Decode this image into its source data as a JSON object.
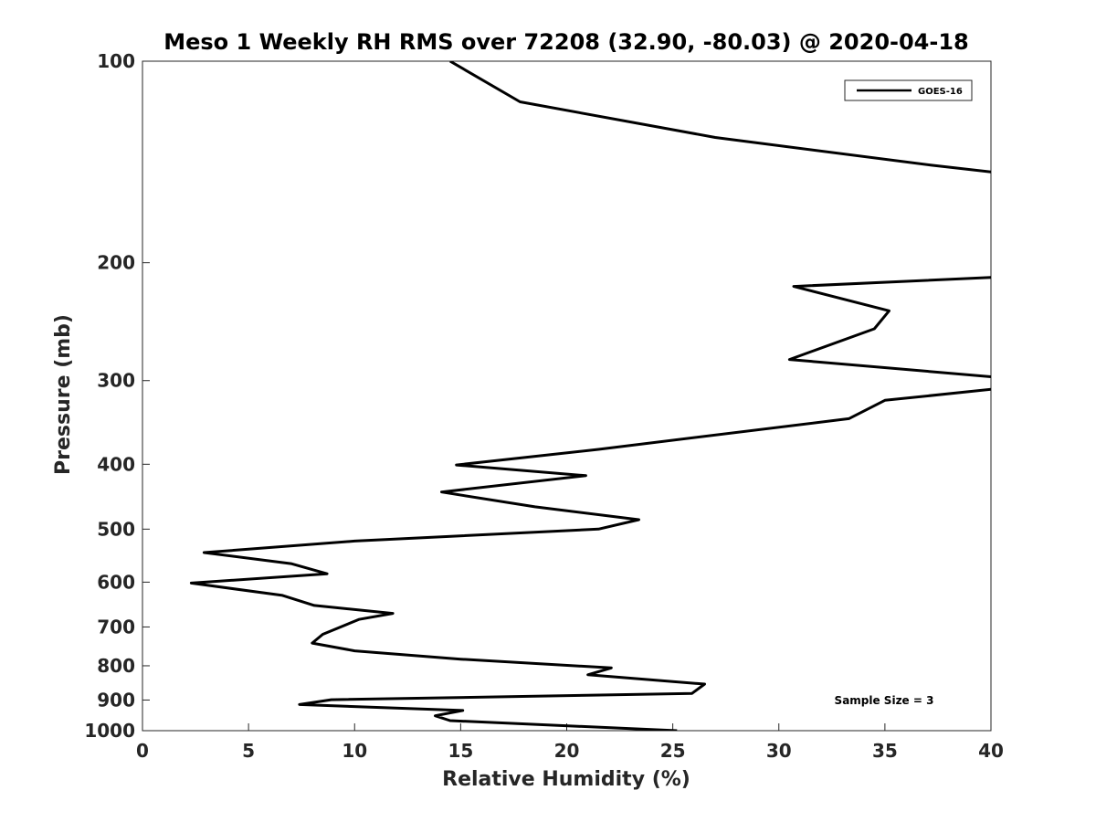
{
  "chart_data": {
    "type": "line",
    "title": "Meso 1 Weekly RH RMS over 72208 (32.90, -80.03) @ 2020-04-18",
    "xlabel": "Relative Humidity (%)",
    "ylabel": "Pressure (mb)",
    "xlim": [
      0,
      40
    ],
    "ylim": [
      100,
      1000
    ],
    "yscale": "log",
    "y_reversed": true,
    "xticks": [
      0,
      5,
      10,
      15,
      20,
      25,
      30,
      35,
      40
    ],
    "xtick_labels": [
      "0",
      "5",
      "10",
      "15",
      "20",
      "25",
      "30",
      "35",
      "40"
    ],
    "yticks": [
      100,
      200,
      300,
      400,
      500,
      600,
      700,
      800,
      900,
      1000
    ],
    "ytick_labels": [
      "100",
      "200",
      "300",
      "400",
      "500",
      "600",
      "700",
      "800",
      "900",
      "1000"
    ],
    "grid": false,
    "legend_position": "top-right",
    "annotation": "Sample Size = 3",
    "series": [
      {
        "name": "GOES-16",
        "color": "#000000",
        "points": [
          [
            14.5,
            100
          ],
          [
            17.8,
            115
          ],
          [
            27.0,
            130
          ],
          [
            37.2,
            143
          ],
          [
            40.5,
            147
          ],
          [
            40.5,
            210
          ],
          [
            30.7,
            217
          ],
          [
            35.2,
            236
          ],
          [
            34.5,
            251
          ],
          [
            30.5,
            279
          ],
          [
            40.5,
            297
          ],
          [
            40.5,
            308
          ],
          [
            35.0,
            321
          ],
          [
            33.3,
            342
          ],
          [
            21.5,
            380
          ],
          [
            14.8,
            401
          ],
          [
            20.9,
            416
          ],
          [
            14.1,
            440
          ],
          [
            18.5,
            463
          ],
          [
            23.4,
            484
          ],
          [
            21.5,
            500
          ],
          [
            10.0,
            521
          ],
          [
            2.9,
            542
          ],
          [
            7.0,
            563
          ],
          [
            8.7,
            583
          ],
          [
            2.3,
            602
          ],
          [
            6.6,
            628
          ],
          [
            8.1,
            650
          ],
          [
            11.8,
            668
          ],
          [
            10.2,
            682
          ],
          [
            8.5,
            718
          ],
          [
            8.0,
            740
          ],
          [
            10.0,
            760
          ],
          [
            15.0,
            782
          ],
          [
            22.1,
            806
          ],
          [
            21.0,
            825
          ],
          [
            26.5,
            852
          ],
          [
            25.9,
            880
          ],
          [
            8.9,
            899
          ],
          [
            7.4,
            914
          ],
          [
            15.1,
            933
          ],
          [
            13.8,
            950
          ],
          [
            14.5,
            966
          ],
          [
            25.2,
            1000
          ]
        ]
      }
    ]
  }
}
